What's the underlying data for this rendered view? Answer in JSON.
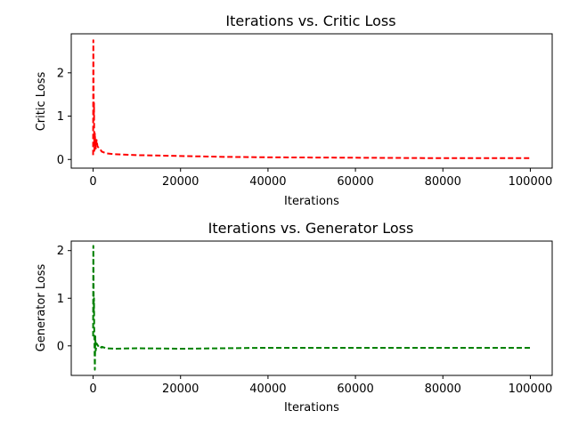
{
  "chart_data": [
    {
      "type": "line",
      "title": "Iterations vs. Critic Loss",
      "xlabel": "Iterations",
      "ylabel": "Critic Loss",
      "xlim": [
        -5000,
        105000
      ],
      "ylim": [
        -0.2,
        2.9
      ],
      "xticks": [
        0,
        20000,
        40000,
        60000,
        80000,
        100000
      ],
      "xtick_labels": [
        "0",
        "20000",
        "40000",
        "60000",
        "80000",
        "100000"
      ],
      "yticks": [
        0,
        1,
        2
      ],
      "ytick_labels": [
        "0",
        "1",
        "2"
      ],
      "grid": false,
      "line_style": "dashed",
      "series": [
        {
          "color": "#ff0000",
          "x": [
            0,
            50,
            100,
            150,
            200,
            250,
            300,
            400,
            500,
            600,
            800,
            1000,
            1500,
            2000,
            3000,
            5000,
            10000,
            20000,
            30000,
            40000,
            50000,
            60000,
            70000,
            80000,
            90000,
            100000
          ],
          "y": [
            0.1,
            2.75,
            1.8,
            0.9,
            1.3,
            0.5,
            0.2,
            0.6,
            0.35,
            0.25,
            0.45,
            0.3,
            0.25,
            0.18,
            0.14,
            0.12,
            0.1,
            0.08,
            0.06,
            0.05,
            0.045,
            0.04,
            0.035,
            0.03,
            0.03,
            0.03
          ]
        }
      ]
    },
    {
      "type": "line",
      "title": "Iterations vs. Generator Loss",
      "xlabel": "Iterations",
      "ylabel": "Generator Loss",
      "xlim": [
        -5000,
        105000
      ],
      "ylim": [
        -0.62,
        2.2
      ],
      "xticks": [
        0,
        20000,
        40000,
        60000,
        80000,
        100000
      ],
      "xtick_labels": [
        "0",
        "20000",
        "40000",
        "60000",
        "80000",
        "100000"
      ],
      "yticks": [
        0,
        1,
        2
      ],
      "ytick_labels": [
        "0",
        "1",
        "2"
      ],
      "grid": false,
      "line_style": "dashed",
      "series": [
        {
          "color": "#008000",
          "x": [
            0,
            50,
            100,
            150,
            200,
            250,
            300,
            400,
            500,
            600,
            800,
            1000,
            1500,
            2000,
            3000,
            5000,
            10000,
            20000,
            30000,
            40000,
            50000,
            60000,
            70000,
            80000,
            90000,
            100000
          ],
          "y": [
            0.2,
            2.1,
            1.4,
            0.7,
            1.0,
            0.4,
            0.1,
            -0.5,
            0.2,
            -0.1,
            0.05,
            0.02,
            -0.05,
            -0.02,
            -0.05,
            -0.06,
            -0.05,
            -0.06,
            -0.05,
            -0.04,
            -0.04,
            -0.04,
            -0.04,
            -0.04,
            -0.04,
            -0.04
          ]
        }
      ]
    }
  ]
}
